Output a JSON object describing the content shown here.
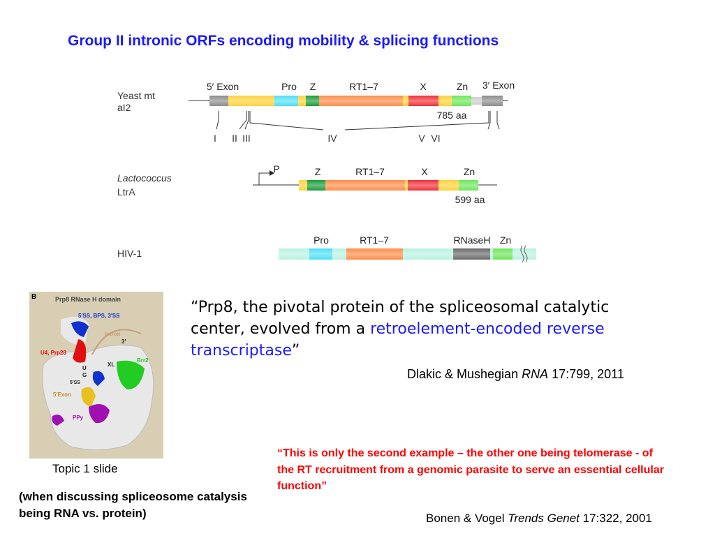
{
  "title": "Group II intronic ORFs encoding mobility & splicing functions",
  "diagram": {
    "yeast": {
      "name_line1": "Yeast mt",
      "name_line2": "aI2",
      "labels": {
        "exon5": "5′ Exon",
        "pro": "Pro",
        "z": "Z",
        "rt": "RT1–7",
        "x": "X",
        "zn": "Zn",
        "exon3": "3′ Exon"
      },
      "length": "785 aa",
      "domains": [
        "I",
        "II",
        "III",
        "IV",
        "V",
        "VI"
      ]
    },
    "lacto": {
      "name_line1": "Lactococcus",
      "name_line2": "LtrA",
      "promoter": "P",
      "labels": {
        "z": "Z",
        "rt": "RT1–7",
        "x": "X",
        "zn": "Zn"
      },
      "length": "599 aa"
    },
    "hiv": {
      "name": "HIV-1",
      "labels": {
        "pro": "Pro",
        "rt": "RT1–7",
        "rnaseh": "RNaseH",
        "zn": "Zn"
      }
    }
  },
  "figure": {
    "panel": "B",
    "title": "Prp8 RNase H domain",
    "labels": {
      "ss": "5′SS, BPS, 3′SS",
      "intron": "Intron",
      "three": "3′",
      "u4": "U4, Prp28",
      "brr2": "Brr2",
      "u": "U",
      "g": "G",
      "xl": "XL",
      "ss5": "5′SS",
      "exon5": "5′Exon",
      "ppy": "PPy"
    }
  },
  "quote": {
    "part1": "“Prp8, the pivotal protein of the spliceosomal catalytic center, evolved from a ",
    "highlight": "retroelement-encoded reverse transcriptase",
    "part2": "”"
  },
  "citation1": {
    "authors": "Dlakic & Mushegian ",
    "journal": "RNA",
    "ref": " 17:799, 2011"
  },
  "red_quote": "“This is only the second example – the other one being telomerase - of the RT recruitment from a genomic parasite to serve an essential cellular function”",
  "topic_label": "Topic 1 slide",
  "note": "(when discussing spliceosome catalysis being RNA vs. protein)",
  "citation2": {
    "authors": "Bonen & Vogel ",
    "journal": "Trends Genet",
    "ref": " 17:322, 2001"
  },
  "colors": {
    "title": "#1a1aff",
    "red": "#ff0000",
    "yellow": "#ffd23a",
    "orange": "#ff8c4a",
    "cyan": "#4ee0f5",
    "green": "#1a9e3a",
    "lightgreen": "#6ee65a",
    "red_domain": "#f0303a",
    "gray": "#8c8c8c",
    "mint": "#b8f2e0"
  }
}
